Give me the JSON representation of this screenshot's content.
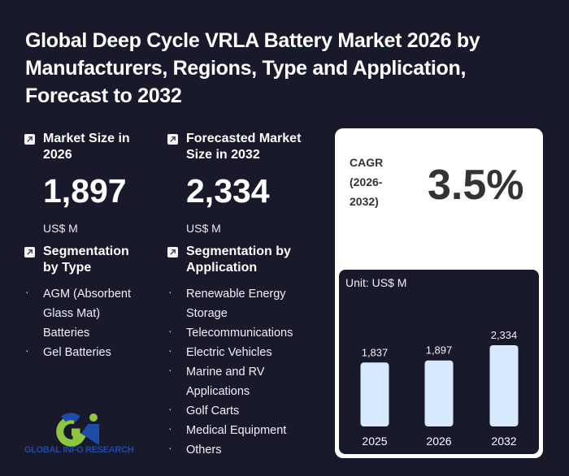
{
  "title": "Global Deep Cycle VRLA Battery Market 2026 by Manufacturers, Regions, Type and Application, Forecast to 2032",
  "market_size": {
    "label": "Market Size in 2026",
    "value": "1,897",
    "unit": "US$ M",
    "icon": "arrow-up-right-icon"
  },
  "forecast_size": {
    "label": "Forecasted Market Size in 2032",
    "value": "2,334",
    "unit": "US$ M",
    "icon": "arrow-up-right-icon"
  },
  "segmentation_type": {
    "label": "Segmentation by Type",
    "items": [
      "AGM (Absorbent Glass Mat) Batteries",
      "Gel Batteries"
    ]
  },
  "segmentation_application": {
    "label": "Segmentation by Application",
    "items": [
      "Renewable Energy Storage",
      "Telecommunications",
      "Electric Vehicles",
      "Marine and RV Applications",
      "Golf Carts",
      "Medical Equipment",
      "Others"
    ]
  },
  "cagr": {
    "label": "CAGR (2026-2032)",
    "value": "3.5%"
  },
  "logo": {
    "text": "GLOBAL INFO RESEARCH"
  },
  "colors": {
    "background": "#181a2c",
    "bar_fill": "#d6e9fd",
    "logo_blue": "#1e4aa8",
    "logo_green": "#8dc63f"
  },
  "chart_data": {
    "type": "bar",
    "title": "",
    "unit_label": "Unit: US$ M",
    "categories": [
      "2025",
      "2026",
      "2032"
    ],
    "values": [
      1837,
      1897,
      2334
    ],
    "value_labels": [
      "1,837",
      "1,897",
      "2,334"
    ],
    "xlabel": "",
    "ylabel": "",
    "grid": false,
    "ylim": [
      0,
      2334
    ]
  }
}
